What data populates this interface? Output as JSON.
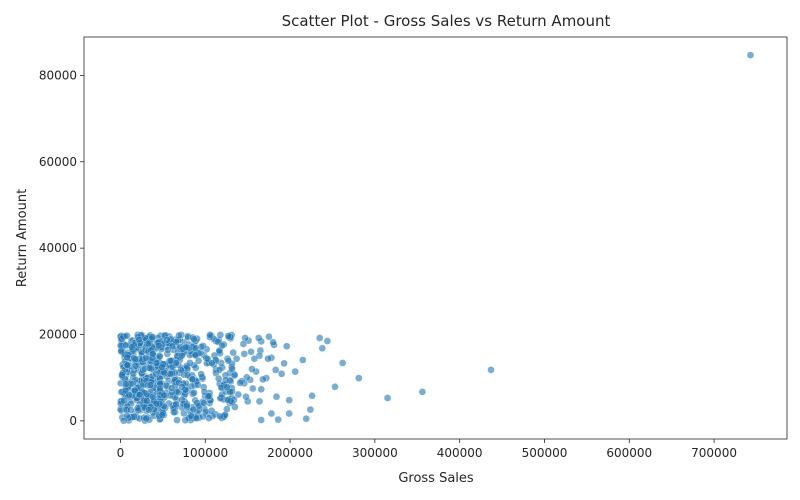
{
  "chart_data": {
    "type": "scatter",
    "title": "Scatter Plot - Gross Sales vs Return Amount",
    "xlabel": "Gross Sales",
    "ylabel": "Return Amount",
    "xlim": [
      -43000,
      786000
    ],
    "ylim": [
      -4200,
      88900
    ],
    "xticks": [
      "0",
      "100000",
      "200000",
      "300000",
      "400000",
      "500000",
      "600000",
      "700000"
    ],
    "yticks": [
      "0",
      "20000",
      "40000",
      "60000",
      "80000"
    ],
    "xtick_values": [
      0,
      100000,
      200000,
      300000,
      400000,
      500000,
      600000,
      700000
    ],
    "ytick_values": [
      0,
      20000,
      40000,
      60000,
      80000
    ],
    "grid": false,
    "legend": "none",
    "marker_color": "#1f77b4",
    "marker_edge_color": "#ffffff",
    "marker_alpha": 0.6,
    "point_count": 700,
    "points": [
      [
        743000,
        84700
      ],
      [
        437000,
        11800
      ],
      [
        356000,
        6700
      ],
      [
        315000,
        5300
      ],
      [
        281000,
        9900
      ],
      [
        262000,
        13400
      ],
      [
        253000,
        7900
      ],
      [
        244000,
        18500
      ],
      [
        238000,
        16800
      ],
      [
        235000,
        19200
      ],
      [
        226000,
        5800
      ],
      [
        224000,
        2600
      ],
      [
        219000,
        500
      ],
      [
        215000,
        14100
      ],
      [
        206000,
        11400
      ],
      [
        199000,
        1700
      ],
      [
        199000,
        4800
      ],
      [
        196000,
        17300
      ],
      [
        193000,
        13300
      ],
      [
        190000,
        10900
      ],
      [
        186000,
        300
      ],
      [
        184000,
        5600
      ],
      [
        183000,
        11800
      ],
      [
        181000,
        17600
      ],
      [
        180000,
        18200
      ],
      [
        178000,
        14600
      ],
      [
        178000,
        1700
      ],
      [
        175000,
        19500
      ],
      [
        174000,
        14400
      ],
      [
        172000,
        9900
      ],
      [
        168000,
        9600
      ],
      [
        166000,
        18400
      ],
      [
        165000,
        16300
      ],
      [
        166000,
        200
      ],
      [
        166000,
        7300
      ],
      [
        164000,
        15100
      ],
      [
        164000,
        4500
      ],
      [
        163000,
        19200
      ],
      [
        160000,
        11400
      ],
      [
        158000,
        14400
      ],
      [
        156000,
        7500
      ],
      [
        155000,
        12000
      ],
      [
        154000,
        16000
      ],
      [
        153000,
        9500
      ],
      [
        151000,
        18600
      ],
      [
        150000,
        4500
      ],
      [
        149000,
        10100
      ],
      [
        148000,
        5600
      ],
      [
        147000,
        19200
      ],
      [
        146000,
        8700
      ],
      [
        146000,
        15500
      ],
      [
        145000,
        17800
      ],
      [
        143000,
        9200
      ],
      [
        141000,
        8800
      ],
      [
        139000,
        6100
      ],
      [
        137000,
        14400
      ],
      [
        135000,
        3200
      ],
      [
        133000,
        15800
      ],
      [
        131000,
        12400
      ],
      [
        130000,
        19100
      ],
      [
        129000,
        7000
      ]
    ]
  }
}
